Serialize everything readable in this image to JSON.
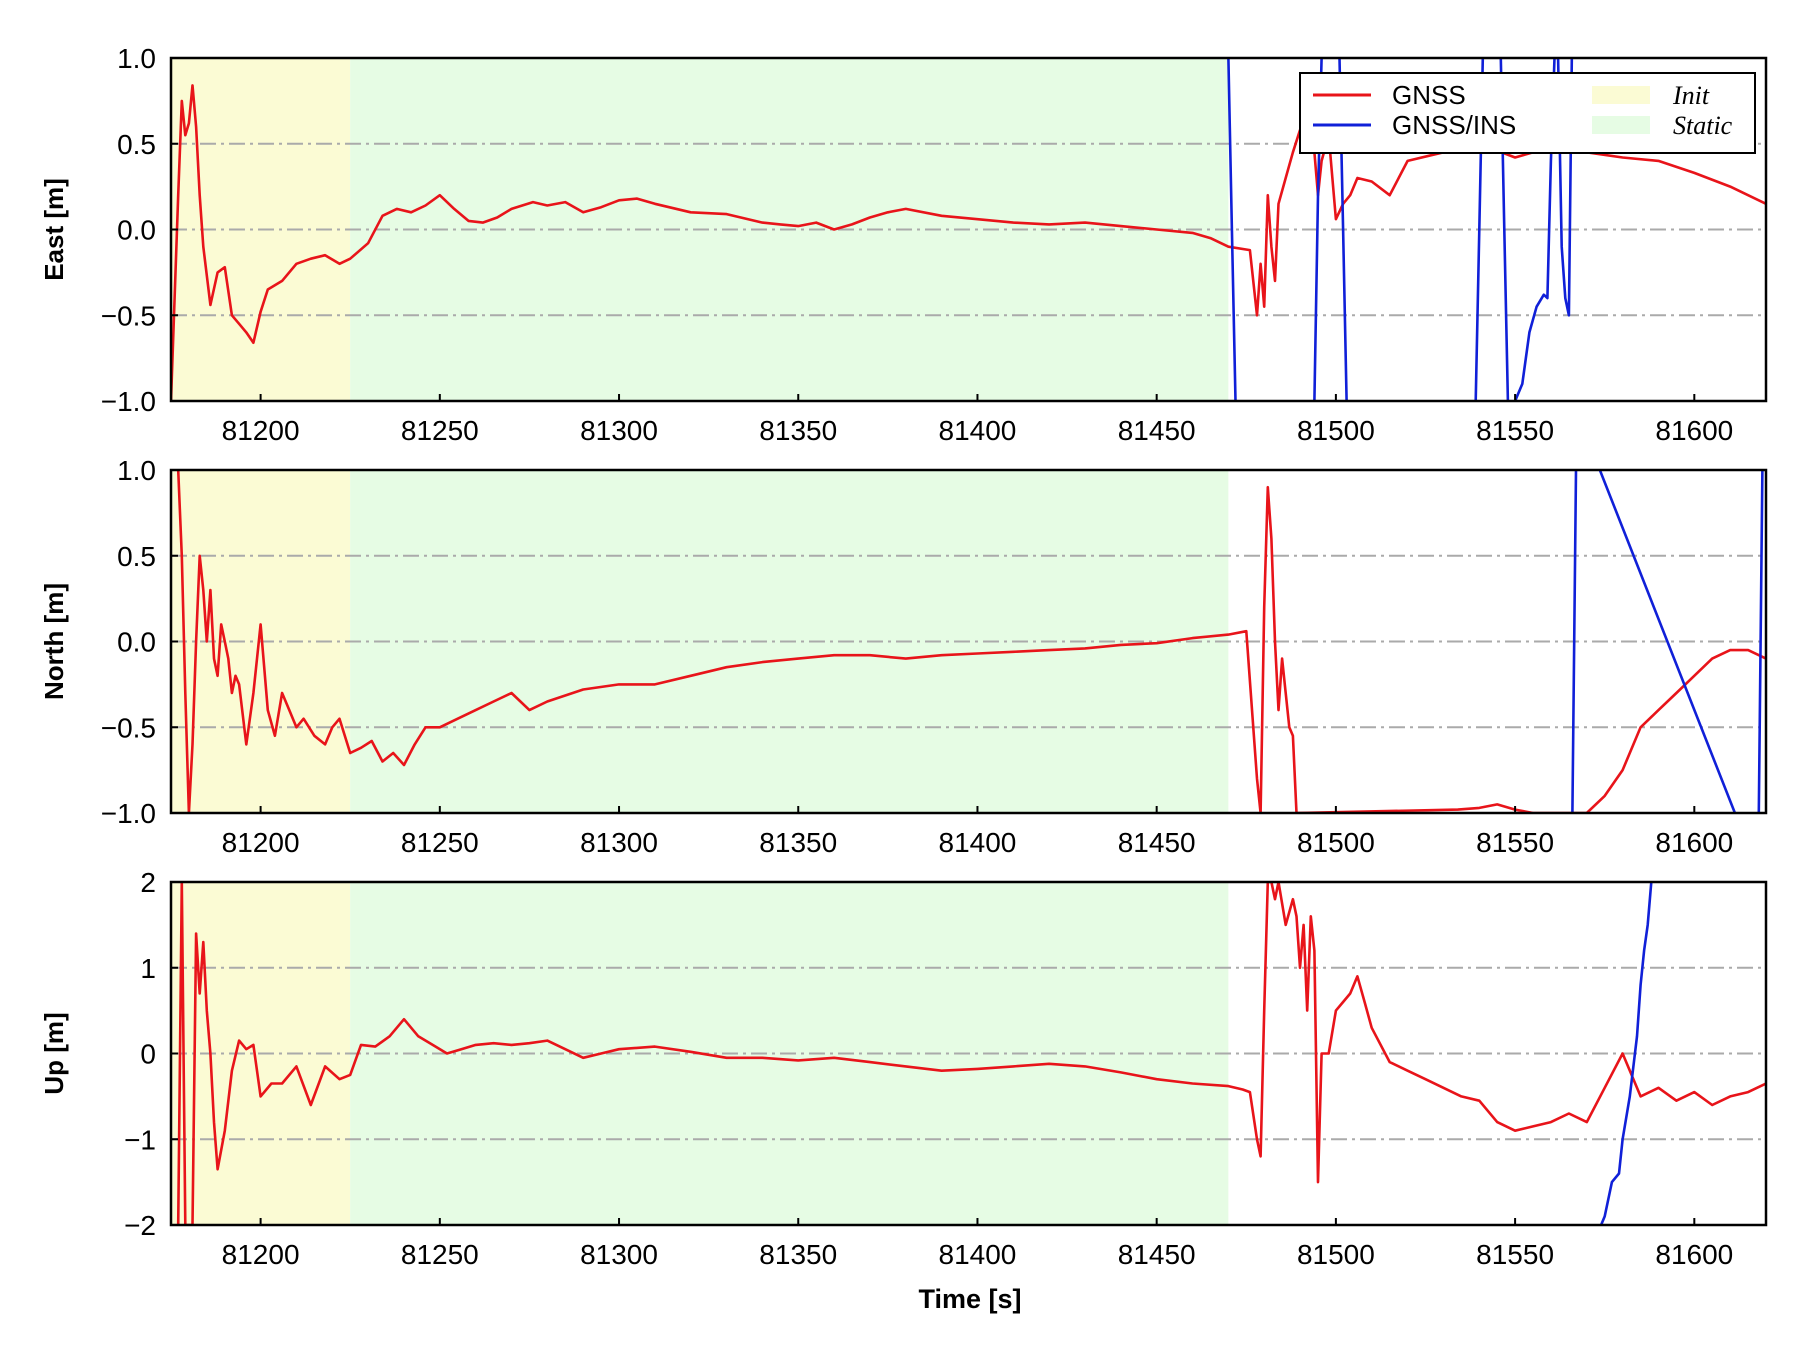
{
  "figure": {
    "xlabel": "Time [s]"
  },
  "legend": {
    "items": [
      {
        "label": "GNSS",
        "kind": "line",
        "color": "#e8141a"
      },
      {
        "label": "GNSS/INS",
        "kind": "line",
        "color": "#1020d8"
      },
      {
        "label": "Init",
        "kind": "patch",
        "color": "#fbfbd4"
      },
      {
        "label": "Static",
        "kind": "patch",
        "color": "#e6fce4"
      }
    ],
    "placement": "top-right of first panel"
  },
  "chart_data": [
    {
      "type": "line",
      "ylabel": "East [m]",
      "xlim": [
        81175,
        81620
      ],
      "ylim": [
        -1.0,
        1.0
      ],
      "xticks": [
        81200,
        81250,
        81300,
        81350,
        81400,
        81450,
        81500,
        81550,
        81600
      ],
      "yticks": [
        -1.0,
        -0.5,
        0.0,
        0.5,
        1.0
      ],
      "ytick_labels": [
        "−1.0",
        "−0.5",
        "0.0",
        "0.5",
        "1.0"
      ],
      "grid": "horizontal dash-dot",
      "shaded_regions": [
        {
          "name": "Init",
          "x": [
            81175,
            81225
          ]
        },
        {
          "name": "Static",
          "x": [
            81225,
            81470
          ]
        }
      ],
      "series": [
        {
          "name": "GNSS",
          "color": "#e8141a",
          "x": [
            81175,
            81177,
            81178,
            81179,
            81180,
            81181,
            81182,
            81183,
            81184,
            81186,
            81188,
            81190,
            81192,
            81194,
            81196,
            81198,
            81200,
            81202,
            81206,
            81210,
            81214,
            81218,
            81222,
            81225,
            81230,
            81234,
            81238,
            81242,
            81246,
            81250,
            81254,
            81258,
            81262,
            81266,
            81270,
            81276,
            81280,
            81285,
            81290,
            81295,
            81300,
            81305,
            81310,
            81320,
            81330,
            81340,
            81345,
            81350,
            81355,
            81360,
            81365,
            81370,
            81375,
            81380,
            81390,
            81400,
            81410,
            81420,
            81430,
            81440,
            81450,
            81460,
            81465,
            81470,
            81476,
            81478,
            81479,
            81480,
            81481,
            81482,
            81483,
            81484,
            81486,
            81488,
            81490,
            81492,
            81494,
            81495,
            81496,
            81498,
            81500,
            81502,
            81504,
            81506,
            81510,
            81515,
            81520,
            81530,
            81540,
            81550,
            81560,
            81570,
            81580,
            81590,
            81600,
            81610,
            81620
          ],
          "y": [
            -1.0,
            0.2,
            0.75,
            0.55,
            0.62,
            0.84,
            0.6,
            0.2,
            -0.1,
            -0.44,
            -0.25,
            -0.22,
            -0.5,
            -0.55,
            -0.6,
            -0.66,
            -0.48,
            -0.35,
            -0.3,
            -0.2,
            -0.17,
            -0.15,
            -0.2,
            -0.17,
            -0.08,
            0.08,
            0.12,
            0.1,
            0.14,
            0.2,
            0.12,
            0.05,
            0.04,
            0.07,
            0.12,
            0.16,
            0.14,
            0.16,
            0.1,
            0.13,
            0.17,
            0.18,
            0.15,
            0.1,
            0.09,
            0.04,
            0.03,
            0.02,
            0.04,
            0.0,
            0.03,
            0.07,
            0.1,
            0.12,
            0.08,
            0.06,
            0.04,
            0.03,
            0.04,
            0.02,
            0.0,
            -0.02,
            -0.05,
            -0.1,
            -0.12,
            -0.5,
            -0.2,
            -0.45,
            0.2,
            -0.1,
            -0.3,
            0.15,
            0.3,
            0.45,
            0.58,
            0.55,
            0.45,
            0.2,
            0.4,
            0.55,
            0.06,
            0.15,
            0.2,
            0.3,
            0.28,
            0.2,
            0.4,
            0.45,
            0.5,
            0.42,
            0.48,
            0.45,
            0.42,
            0.4,
            0.33,
            0.25,
            0.15
          ]
        },
        {
          "name": "GNSS/INS",
          "color": "#1020d8",
          "x": [
            81469,
            81470,
            81471,
            81472,
            81473,
            81493,
            81494,
            81495,
            81496,
            81497,
            81500,
            81501,
            81502,
            81503,
            81504,
            81538,
            81539,
            81540,
            81541,
            81542,
            81545,
            81546,
            81547,
            81548,
            81549,
            81550,
            81552,
            81554,
            81556,
            81558,
            81559,
            81560,
            81561,
            81562,
            81563,
            81564,
            81565,
            81566
          ],
          "y": [
            1.3,
            1.0,
            0.0,
            -1.0,
            -1.3,
            -1.3,
            -1.0,
            0.2,
            1.0,
            1.3,
            1.3,
            1.0,
            0.0,
            -1.0,
            -1.3,
            -1.3,
            -1.0,
            0.0,
            1.0,
            1.3,
            1.3,
            1.0,
            0.0,
            -1.0,
            -1.3,
            -1.0,
            -0.9,
            -0.6,
            -0.45,
            -0.38,
            -0.4,
            0.4,
            1.0,
            1.0,
            -0.1,
            -0.4,
            -0.5,
            1.3
          ]
        }
      ]
    },
    {
      "type": "line",
      "ylabel": "North [m]",
      "xlim": [
        81175,
        81620
      ],
      "ylim": [
        -1.0,
        1.0
      ],
      "xticks": [
        81200,
        81250,
        81300,
        81350,
        81400,
        81450,
        81500,
        81550,
        81600
      ],
      "yticks": [
        -1.0,
        -0.5,
        0.0,
        0.5,
        1.0
      ],
      "ytick_labels": [
        "−1.0",
        "−0.5",
        "0.0",
        "0.5",
        "1.0"
      ],
      "grid": "horizontal dash-dot",
      "shaded_regions": [
        {
          "name": "Init",
          "x": [
            81175,
            81225
          ]
        },
        {
          "name": "Static",
          "x": [
            81225,
            81470
          ]
        }
      ],
      "series": [
        {
          "name": "GNSS",
          "color": "#e8141a",
          "x": [
            81177,
            81178,
            81179,
            81180,
            81181,
            81182,
            81183,
            81184,
            81185,
            81186,
            81187,
            81188,
            81189,
            81190,
            81191,
            81192,
            81193,
            81194,
            81196,
            81198,
            81200,
            81202,
            81204,
            81206,
            81208,
            81210,
            81212,
            81215,
            81218,
            81220,
            81222,
            81225,
            81228,
            81231,
            81234,
            81237,
            81240,
            81243,
            81246,
            81250,
            81255,
            81260,
            81265,
            81270,
            81275,
            81280,
            81290,
            81300,
            81310,
            81320,
            81330,
            81340,
            81350,
            81360,
            81370,
            81380,
            81390,
            81400,
            81410,
            81420,
            81430,
            81440,
            81450,
            81460,
            81470,
            81475,
            81478,
            81479,
            81480,
            81481,
            81482,
            81483,
            81484,
            81485,
            81486,
            81487,
            81488,
            81489,
            81534,
            81540,
            81545,
            81550,
            81555,
            81560,
            81565,
            81570,
            81575,
            81580,
            81585,
            81590,
            81595,
            81600,
            81605,
            81610,
            81615,
            81620
          ],
          "y": [
            1.0,
            0.5,
            -0.3,
            -1.0,
            -0.6,
            0.0,
            0.5,
            0.3,
            0.0,
            0.3,
            -0.1,
            -0.2,
            0.1,
            0.0,
            -0.1,
            -0.3,
            -0.2,
            -0.25,
            -0.6,
            -0.3,
            0.1,
            -0.4,
            -0.55,
            -0.3,
            -0.4,
            -0.5,
            -0.45,
            -0.55,
            -0.6,
            -0.5,
            -0.45,
            -0.65,
            -0.62,
            -0.58,
            -0.7,
            -0.65,
            -0.72,
            -0.6,
            -0.5,
            -0.5,
            -0.45,
            -0.4,
            -0.35,
            -0.3,
            -0.4,
            -0.35,
            -0.28,
            -0.25,
            -0.25,
            -0.2,
            -0.15,
            -0.12,
            -0.1,
            -0.08,
            -0.08,
            -0.1,
            -0.08,
            -0.07,
            -0.06,
            -0.05,
            -0.04,
            -0.02,
            -0.01,
            0.02,
            0.04,
            0.06,
            -0.8,
            -1.0,
            0.2,
            0.9,
            0.6,
            0.0,
            -0.4,
            -0.1,
            -0.3,
            -0.5,
            -0.55,
            -1.0,
            -0.98,
            -0.97,
            -0.95,
            -0.98,
            -1.0,
            -1.0,
            -1.0,
            -1.0,
            -0.9,
            -0.75,
            -0.5,
            -0.4,
            -0.3,
            -0.2,
            -0.1,
            -0.05,
            -0.05,
            -0.1
          ]
        },
        {
          "name": "GNSS/INS",
          "color": "#1020d8",
          "x": [
            81565,
            81566,
            81567,
            81568,
            81617,
            81618,
            81619,
            81620
          ],
          "y": [
            -1.3,
            -1.0,
            1.0,
            1.3,
            -1.3,
            -1.0,
            1.0,
            1.3
          ]
        }
      ]
    },
    {
      "type": "line",
      "ylabel": "Up [m]",
      "xlim": [
        81175,
        81620
      ],
      "ylim": [
        -2,
        2
      ],
      "xticks": [
        81200,
        81250,
        81300,
        81350,
        81400,
        81450,
        81500,
        81550,
        81600
      ],
      "yticks": [
        -2,
        -1,
        0,
        1,
        2
      ],
      "ytick_labels": [
        "−2",
        "−1",
        "0",
        "1",
        "2"
      ],
      "grid": "horizontal dash-dot",
      "shaded_regions": [
        {
          "name": "Init",
          "x": [
            81175,
            81225
          ]
        },
        {
          "name": "Static",
          "x": [
            81225,
            81470
          ]
        }
      ],
      "series": [
        {
          "name": "GNSS",
          "color": "#e8141a",
          "x": [
            81177,
            81178,
            81179,
            81180,
            81181,
            81182,
            81183,
            81184,
            81185,
            81186,
            81187,
            81188,
            81190,
            81192,
            81194,
            81196,
            81198,
            81200,
            81203,
            81206,
            81210,
            81214,
            81218,
            81222,
            81225,
            81228,
            81232,
            81236,
            81240,
            81244,
            81248,
            81252,
            81256,
            81260,
            81265,
            81270,
            81275,
            81280,
            81285,
            81290,
            81295,
            81300,
            81310,
            81320,
            81330,
            81340,
            81350,
            81360,
            81370,
            81380,
            81390,
            81400,
            81410,
            81420,
            81430,
            81440,
            81450,
            81460,
            81470,
            81474,
            81476,
            81478,
            81479,
            81480,
            81481,
            81482,
            81483,
            81484,
            81486,
            81488,
            81489,
            81490,
            81491,
            81492,
            81493,
            81494,
            81495,
            81496,
            81498,
            81500,
            81502,
            81504,
            81506,
            81508,
            81510,
            81515,
            81520,
            81525,
            81530,
            81535,
            81540,
            81545,
            81550,
            81555,
            81560,
            81565,
            81570,
            81575,
            81580,
            81585,
            81590,
            81595,
            81600,
            81605,
            81610,
            81615,
            81620
          ],
          "y": [
            -2.0,
            2.0,
            -2.0,
            -2.0,
            -2.0,
            1.4,
            0.7,
            1.3,
            0.5,
            0.0,
            -0.8,
            -1.35,
            -0.9,
            -0.2,
            0.15,
            0.05,
            0.1,
            -0.5,
            -0.35,
            -0.35,
            -0.15,
            -0.6,
            -0.15,
            -0.3,
            -0.25,
            0.1,
            0.08,
            0.2,
            0.4,
            0.2,
            0.1,
            0.0,
            0.05,
            0.1,
            0.12,
            0.1,
            0.12,
            0.15,
            0.05,
            -0.05,
            0.0,
            0.05,
            0.08,
            0.02,
            -0.05,
            -0.05,
            -0.08,
            -0.05,
            -0.1,
            -0.15,
            -0.2,
            -0.18,
            -0.15,
            -0.12,
            -0.15,
            -0.22,
            -0.3,
            -0.35,
            -0.38,
            -0.42,
            -0.45,
            -1.0,
            -1.2,
            0.5,
            2.0,
            2.0,
            1.8,
            2.0,
            1.5,
            1.8,
            1.6,
            1.0,
            1.5,
            0.5,
            1.6,
            1.2,
            -1.5,
            0.0,
            0.0,
            0.5,
            0.6,
            0.7,
            0.9,
            0.6,
            0.3,
            -0.1,
            -0.2,
            -0.3,
            -0.4,
            -0.5,
            -0.55,
            -0.8,
            -0.9,
            -0.85,
            -0.8,
            -0.7,
            -0.8,
            -0.4,
            0.0,
            -0.5,
            -0.4,
            -0.55,
            -0.45,
            -0.6,
            -0.5,
            -0.45,
            -0.35
          ]
        },
        {
          "name": "GNSS/INS",
          "color": "#1020d8",
          "x": [
            81574,
            81575,
            81577,
            81579,
            81580,
            81582,
            81584,
            81585,
            81586,
            81587,
            81588
          ],
          "y": [
            -2.0,
            -1.9,
            -1.5,
            -1.4,
            -1.0,
            -0.5,
            0.2,
            0.8,
            1.2,
            1.5,
            2.0
          ]
        }
      ]
    }
  ]
}
